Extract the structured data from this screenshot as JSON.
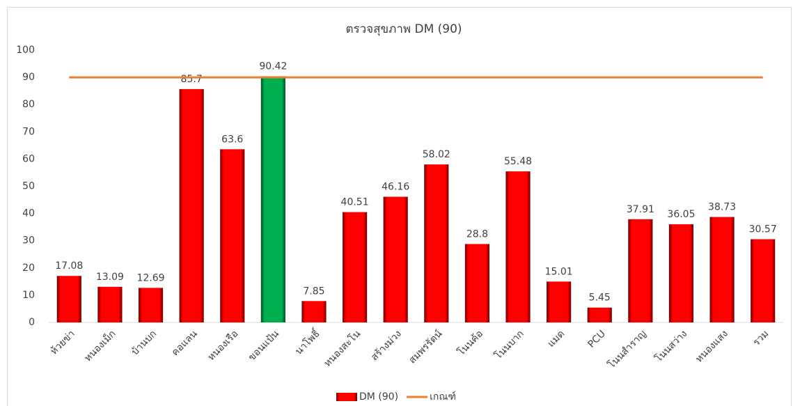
{
  "chart_data": {
    "type": "bar",
    "title": "ตรวจสุขภาพ DM (90)",
    "categories": [
      "ห้วยข่า",
      "หนองเม็ก",
      "บ้านบก",
      "คอแลน",
      "หนองเรือ",
      "ขอนแป้น",
      "นาโพธิ์",
      "หนองสะโน",
      "สร้างม่วง",
      "สมพรรัตน์",
      "โนนค้อ",
      "โนนบาก",
      "แมด",
      "PCU",
      "โนนสำราญ",
      "โนนสว่าง",
      "หนองแสง",
      "รวม"
    ],
    "series": [
      {
        "name": "DM (90)",
        "type": "bar",
        "color": "#ff0000",
        "colors": [
          "#ff0000",
          "#ff0000",
          "#ff0000",
          "#ff0000",
          "#ff0000",
          "#00b050",
          "#ff0000",
          "#ff0000",
          "#ff0000",
          "#ff0000",
          "#ff0000",
          "#ff0000",
          "#ff0000",
          "#ff0000",
          "#ff0000",
          "#ff0000",
          "#ff0000",
          "#ff0000"
        ],
        "values": [
          17.08,
          13.09,
          12.69,
          85.7,
          63.6,
          90.42,
          7.85,
          40.51,
          46.16,
          58.02,
          28.8,
          55.48,
          15.01,
          5.45,
          37.91,
          36.05,
          38.73,
          30.57
        ]
      },
      {
        "name": "เกณฑ์",
        "type": "line",
        "color": "#ed7d31",
        "values": [
          90,
          90,
          90,
          90,
          90,
          90,
          90,
          90,
          90,
          90,
          90,
          90,
          90,
          90,
          90,
          90,
          90,
          90
        ]
      }
    ],
    "ylim": [
      0,
      100
    ],
    "yticks": [
      0,
      10,
      20,
      30,
      40,
      50,
      60,
      70,
      80,
      90,
      100
    ],
    "grid": false,
    "data_labels": true,
    "legend": "bottom"
  }
}
